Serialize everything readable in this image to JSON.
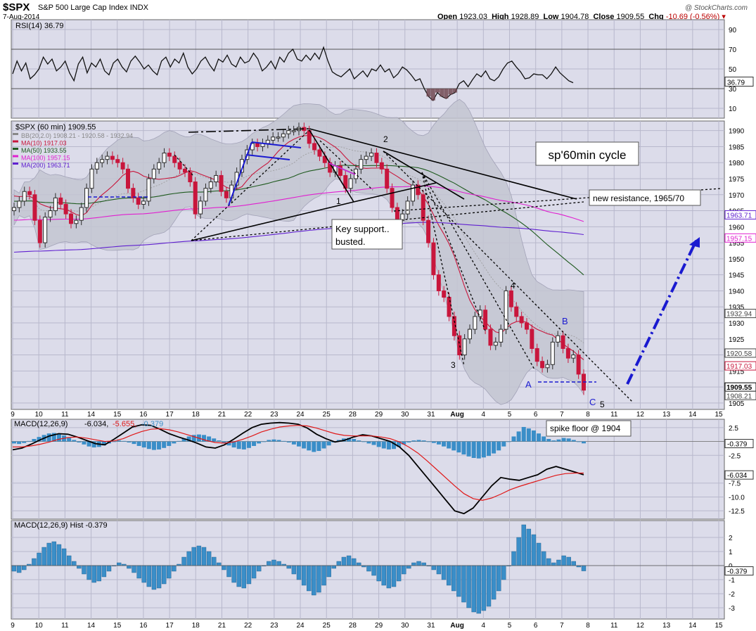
{
  "header": {
    "symbol": "$SPX",
    "name": "S&P 500 Large Cap Index",
    "exchange": "INDX",
    "date": "7-Aug-2014",
    "credit": "@ StockCharts.com",
    "open_label": "Open",
    "open": "1923.03",
    "high_label": "High",
    "high": "1928.89",
    "low_label": "Low",
    "low": "1904.78",
    "close_label": "Close",
    "close": "1909.55",
    "chg_label": "Chg",
    "chg": "-10.69 (-0.56%)"
  },
  "colors": {
    "panel_bg": "#dcdcea",
    "grid": "#b8b8cc",
    "up_candle": "#2a2a2a",
    "down_candle": "#c8163c",
    "bollinger_fill": "#c4c6d2",
    "ma10": "#c8163c",
    "ma50": "#1f5a1f",
    "ma100": "#e020d0",
    "ma200": "#6020d0",
    "macd_hist": "#3a8ec8",
    "annotation_blue": "#1a1ad0"
  },
  "chart_data": [
    {
      "type": "line",
      "panel": "rsi",
      "title": "RSI(14) 36.79",
      "ylim": [
        0,
        100
      ],
      "y_ticks": [
        "90",
        "70",
        "50",
        "30",
        "10"
      ],
      "reference_lines": [
        70,
        30
      ],
      "last_value_label": "36.79",
      "series": [
        {
          "name": "RSI(14)",
          "values": [
            45,
            58,
            48,
            56,
            40,
            44,
            50,
            62,
            55,
            60,
            48,
            52,
            58,
            46,
            38,
            55,
            62,
            46,
            56,
            52,
            60,
            48,
            44,
            56,
            60,
            52,
            47,
            58,
            63,
            57,
            50,
            54,
            48,
            44,
            58,
            62,
            52,
            60,
            56,
            66,
            52,
            45,
            50,
            58,
            62,
            54,
            48,
            60,
            57,
            64,
            55,
            52,
            62,
            56,
            58,
            66,
            60,
            48,
            52,
            58,
            50,
            62,
            57,
            66,
            70,
            60,
            58,
            64,
            59,
            66,
            60,
            72,
            58,
            47,
            44,
            42,
            46,
            50,
            40,
            44,
            48,
            42,
            50,
            48,
            54,
            47,
            50,
            41,
            45,
            52,
            49,
            44,
            38,
            40,
            30,
            22,
            18,
            26,
            22,
            20,
            24,
            26,
            35,
            38,
            32,
            39,
            45,
            42,
            48,
            40,
            38,
            42,
            50,
            56,
            58,
            52,
            47,
            40,
            41,
            45,
            44,
            44,
            40,
            45,
            52,
            46,
            42,
            38,
            36
          ]
        }
      ]
    },
    {
      "type": "line",
      "panel": "price",
      "title": "$SPX (60 min) 1909.55",
      "ylim": [
        1903,
        1993
      ],
      "y_ticks": [
        "1990",
        "1985",
        "1980",
        "1975",
        "1970",
        "1965",
        "1960",
        "1955",
        "1950",
        "1945",
        "1940",
        "1935",
        "1930",
        "1925",
        "1920",
        "1915",
        "1910",
        "1905"
      ],
      "legend": [
        {
          "label": "BB(20,2.0) 1908.21 - 1920.58 - 1932.94",
          "color": "#888888"
        },
        {
          "label": "MA(10) 1917.03",
          "color": "#c8163c"
        },
        {
          "label": "MA(50) 1933.55",
          "color": "#1f5a1f"
        },
        {
          "label": "MA(100) 1957.15",
          "color": "#e020d0"
        },
        {
          "label": "MA(200) 1963.71",
          "color": "#6020d0"
        }
      ],
      "right_labels": [
        "1963.71",
        "1957.15",
        "1932.94",
        "1920.58",
        "1917.03",
        "1909.55",
        "1908.21"
      ],
      "closes": [
        1966,
        1968,
        1971,
        1970,
        1962,
        1955,
        1963,
        1965,
        1969,
        1967,
        1964,
        1961,
        1962,
        1966,
        1972,
        1978,
        1980,
        1981,
        1982,
        1981,
        1980,
        1978,
        1972,
        1969,
        1967,
        1968,
        1975,
        1978,
        1980,
        1983,
        1982,
        1980,
        1978,
        1977,
        1974,
        1964,
        1968,
        1972,
        1974,
        1976,
        1971,
        1969,
        1973,
        1977,
        1981,
        1984,
        1986,
        1985,
        1986,
        1987,
        1988,
        1988,
        1989,
        1990,
        1990,
        1991,
        1990,
        1986,
        1984,
        1982,
        1980,
        1977,
        1979,
        1976,
        1972,
        1975,
        1978,
        1981,
        1982,
        1983,
        1980,
        1978,
        1972,
        1966,
        1962,
        1964,
        1968,
        1973,
        1970,
        1962,
        1955,
        1945,
        1940,
        1938,
        1932,
        1926,
        1920,
        1925,
        1928,
        1932,
        1934,
        1928,
        1923,
        1924,
        1928,
        1940,
        1935,
        1932,
        1930,
        1928,
        1922,
        1918,
        1916,
        1917,
        1924,
        1926,
        1922,
        1919,
        1920,
        1914,
        1909
      ]
    },
    {
      "type": "line",
      "panel": "macd",
      "title": "MACD(12,26,9) -6.034, -5.655, -0.379",
      "legend": [
        "MACD(12,26,9)",
        "-6.034",
        "-5.655",
        "-0.379"
      ],
      "ylim": [
        -14,
        4
      ],
      "y_ticks": [
        "2.5",
        "-2.5",
        "-7.5",
        "-10.0",
        "-12.5"
      ],
      "right_labels": [
        "-0.379",
        "-6.034"
      ],
      "series": [
        {
          "name": "MACD(12,26,9)",
          "values": [
            -1.5,
            -1.2,
            -0.5,
            0.3,
            1.0,
            1.4,
            1.3,
            0.8,
            0.2,
            -0.4,
            -0.6,
            0.4,
            1.5,
            2.6,
            3.0,
            2.9,
            2.2,
            1.4,
            0.8,
            0.3,
            -0.3,
            -1.0,
            -1.2,
            -0.6,
            0.4,
            1.5,
            2.5,
            3.1,
            3.3,
            3.4,
            3.3,
            3.1,
            2.4,
            1.3,
            0.5,
            -0.1,
            0.2,
            0.8,
            1.2,
            1.0,
            0.5,
            0.0,
            -1.0,
            -2.5,
            -4.5,
            -6.5,
            -8.5,
            -10.5,
            -12.5,
            -13.0,
            -12.0,
            -10.0,
            -8.0,
            -6.5,
            -6.8,
            -7.0,
            -6.5,
            -6.0,
            -5.0,
            -4.5,
            -5.0,
            -5.5,
            -6.0
          ]
        },
        {
          "name": "Signal",
          "values": [
            -1.0,
            -1.0,
            -0.8,
            -0.5,
            -0.1,
            0.4,
            0.7,
            0.8,
            0.6,
            0.3,
            0.0,
            0.1,
            0.5,
            1.2,
            1.8,
            2.2,
            2.3,
            2.1,
            1.7,
            1.2,
            0.7,
            0.2,
            -0.2,
            -0.3,
            -0.1,
            0.4,
            1.0,
            1.7,
            2.2,
            2.6,
            2.8,
            2.9,
            2.8,
            2.4,
            1.9,
            1.4,
            1.1,
            1.0,
            1.0,
            1.0,
            0.8,
            0.5,
            -0.1,
            -1.0,
            -2.1,
            -3.5,
            -5.0,
            -6.5,
            -8.0,
            -9.4,
            -10.3,
            -10.6,
            -10.2,
            -9.5,
            -8.7,
            -8.1,
            -7.6,
            -7.1,
            -6.6,
            -6.1,
            -5.8,
            -5.7,
            -5.7
          ]
        }
      ]
    },
    {
      "type": "bar",
      "panel": "hist",
      "title": "MACD(12,26,9) Hist -0.379",
      "ylim": [
        -3.8,
        3.2
      ],
      "y_ticks": [
        "2",
        "1",
        "0",
        "-1",
        "-2",
        "-3"
      ],
      "right_labels": [
        "-0.379"
      ],
      "values": [
        -0.4,
        -0.5,
        -0.3,
        0.1,
        0.5,
        0.9,
        1.3,
        1.6,
        1.7,
        1.5,
        1.2,
        0.7,
        0.3,
        -0.2,
        -0.6,
        -1.0,
        -1.2,
        -1.1,
        -0.8,
        -0.4,
        0.0,
        0.2,
        0.1,
        -0.2,
        -0.5,
        -0.9,
        -1.2,
        -1.5,
        -1.7,
        -1.6,
        -1.3,
        -0.9,
        -0.4,
        0.1,
        0.6,
        1.0,
        1.3,
        1.4,
        1.3,
        1.0,
        0.6,
        0.2,
        -0.3,
        -0.8,
        -1.2,
        -1.5,
        -1.6,
        -1.3,
        -0.9,
        -0.4,
        0.0,
        0.3,
        0.4,
        0.3,
        0.1,
        -0.2,
        -0.6,
        -1.0,
        -1.4,
        -1.8,
        -2.1,
        -1.9,
        -1.4,
        -0.8,
        -0.2,
        0.3,
        0.6,
        0.7,
        0.5,
        0.2,
        -0.1,
        -0.4,
        -0.7,
        -1.1,
        -1.4,
        -1.6,
        -1.5,
        -1.1,
        -0.6,
        -0.2,
        0.2,
        0.3,
        0.2,
        0.0,
        -0.3,
        -0.6,
        -1.0,
        -1.4,
        -1.8,
        -2.2,
        -2.6,
        -3.0,
        -3.3,
        -3.4,
        -3.2,
        -2.9,
        -2.4,
        -1.8,
        -1.0,
        0.0,
        1.0,
        2.0,
        2.9,
        2.6,
        2.2,
        1.6,
        1.0,
        0.5,
        0.2,
        0.4,
        0.7,
        0.6,
        0.3,
        -0.1,
        -0.379
      ]
    }
  ],
  "x_axis": {
    "labels": [
      "9",
      "10",
      "11",
      "14",
      "15",
      "16",
      "17",
      "18",
      "21",
      "22",
      "23",
      "24",
      "25",
      "28",
      "29",
      "30",
      "31",
      "Aug",
      "4",
      "5",
      "6",
      "7",
      "8",
      "11",
      "12",
      "13",
      "14",
      "15"
    ]
  },
  "annotations": {
    "cycle_title": "sp'60min cycle",
    "resistance": "new resistance, 1965/70",
    "support_line1": "Key support..",
    "support_line2": "busted.",
    "spike_floor": "spike floor @ 1904",
    "wave_1": "1",
    "wave_2": "2",
    "wave_3": "3",
    "wave_4": "4",
    "wave_5": "5",
    "wave_a": "A",
    "wave_b": "B",
    "wave_c": "C"
  }
}
